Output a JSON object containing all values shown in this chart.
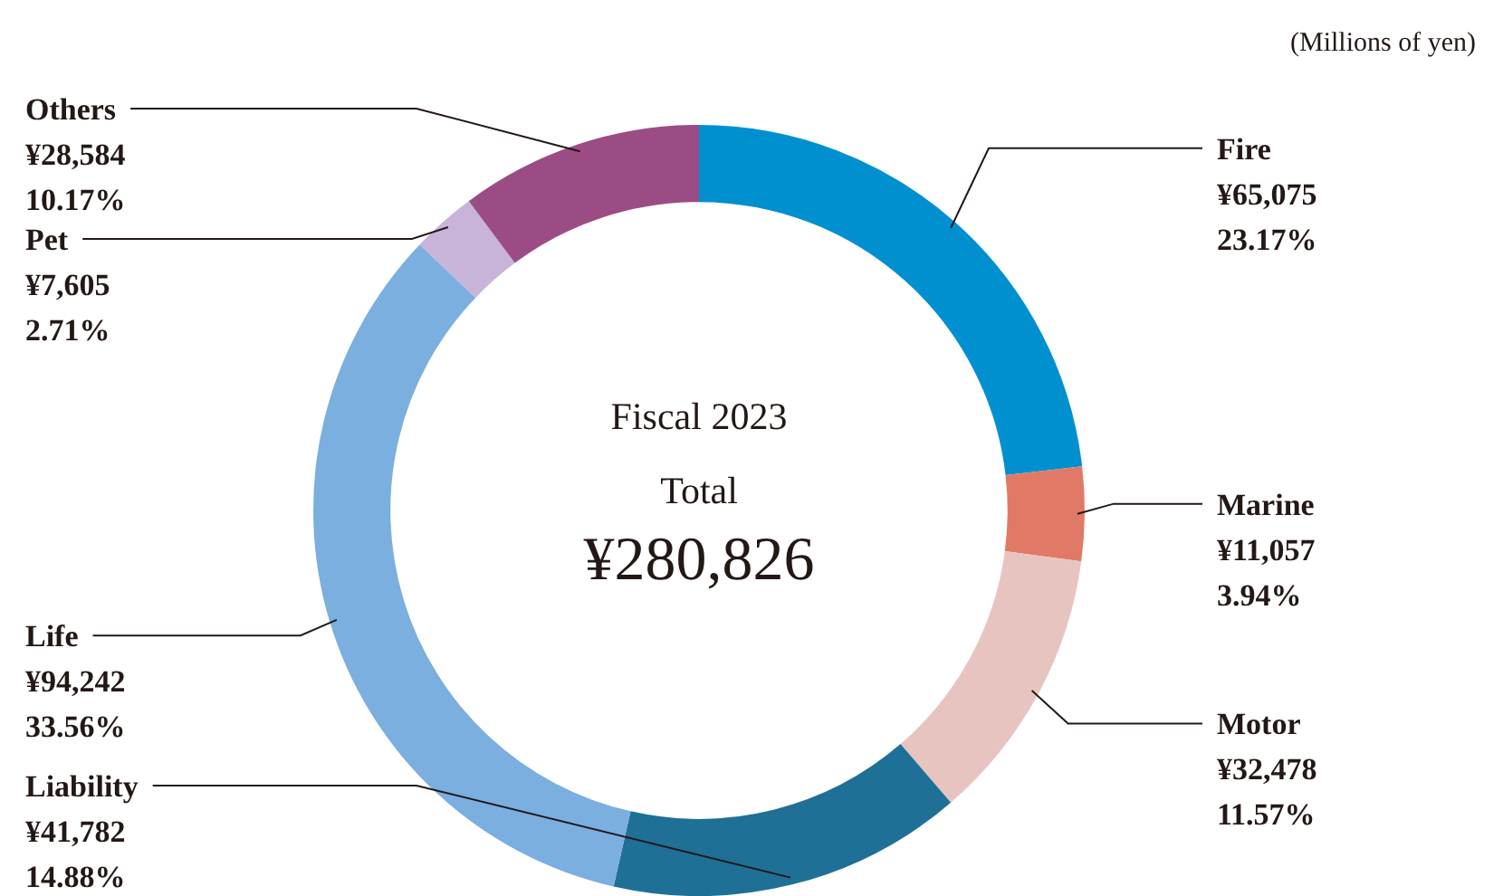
{
  "chart_data": {
    "type": "donut",
    "categories": [
      "Fire",
      "Marine",
      "Motor",
      "Liability",
      "Life",
      "Pet",
      "Others"
    ],
    "values": [
      65075,
      11057,
      32478,
      41782,
      94242,
      7605,
      28584
    ],
    "colors": [
      "#0090d0",
      "#e07a66",
      "#e8c4c0",
      "#1f7096",
      "#7aafe0",
      "#c8b4d8",
      "#9c4c84"
    ],
    "value_labels": [
      "¥65,075\n23.17%",
      "¥11,057\n3.94%",
      "¥32,478\n11.57%",
      "¥41,782\n14.88%",
      "¥94,242\n33.56%",
      "¥7,605\n2.71%",
      "¥28,584\n10.17%"
    ],
    "annotations": [
      "(Millions of yen)",
      "Fiscal 2023",
      "Total",
      "¥280,826"
    ]
  }
}
